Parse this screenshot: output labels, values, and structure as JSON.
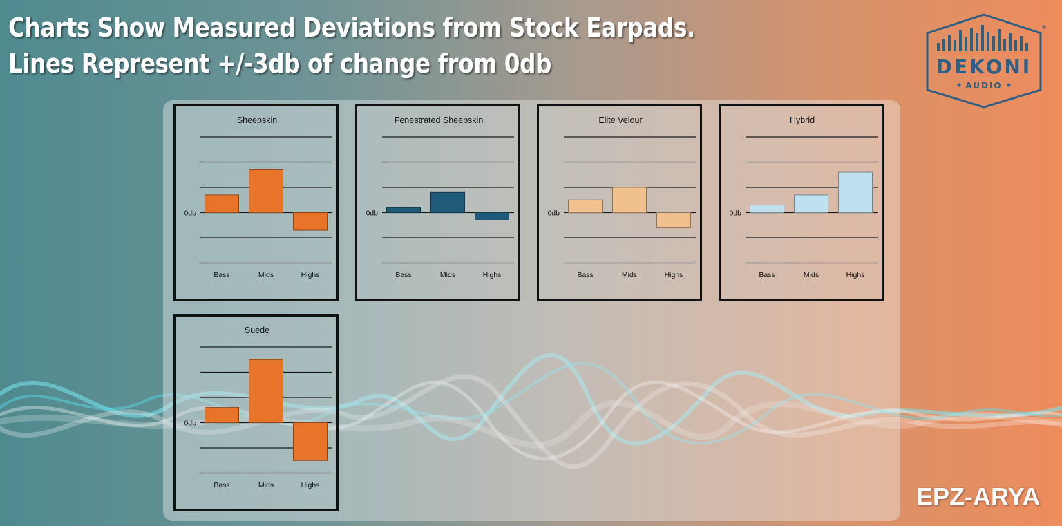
{
  "headline": {
    "line1": "Charts Show Measured Deviations from Stock Earpads.",
    "line2": "Lines Represent +/-3db of change from 0db"
  },
  "brand": {
    "logo_main": "DEKONI",
    "logo_sub": "AUDIO",
    "registered": "®",
    "product": "EPZ-ARYA",
    "logo_color": "#2f5f82"
  },
  "chart_data": [
    {
      "type": "bar",
      "title": "Sheepskin",
      "categories": [
        "Bass",
        "Mids",
        "Highs"
      ],
      "values": [
        0.7,
        1.7,
        -0.7
      ],
      "ylim": [
        -2,
        3
      ],
      "gridlines": [
        -2,
        -1,
        0,
        1,
        2,
        3
      ],
      "zero_label": "0db",
      "color": "#e8742a"
    },
    {
      "type": "bar",
      "title": "Fenestrated Sheepskin",
      "categories": [
        "Bass",
        "Mids",
        "Highs"
      ],
      "values": [
        0.2,
        0.8,
        -0.3
      ],
      "ylim": [
        -2,
        3
      ],
      "gridlines": [
        -2,
        -1,
        0,
        1,
        2,
        3
      ],
      "zero_label": "0db",
      "color": "#1f5a78"
    },
    {
      "type": "bar",
      "title": "Elite Velour",
      "categories": [
        "Bass",
        "Mids",
        "Highs"
      ],
      "values": [
        0.5,
        1.0,
        -0.6
      ],
      "ylim": [
        -2,
        3
      ],
      "gridlines": [
        -2,
        -1,
        0,
        1,
        2,
        3
      ],
      "zero_label": "0db",
      "color": "#f0c08e"
    },
    {
      "type": "bar",
      "title": "Hybrid",
      "categories": [
        "Bass",
        "Mids",
        "Highs"
      ],
      "values": [
        0.3,
        0.7,
        1.6
      ],
      "ylim": [
        -2,
        3
      ],
      "gridlines": [
        -2,
        -1,
        0,
        1,
        2,
        3
      ],
      "zero_label": "0db",
      "color": "#bfe0ee"
    },
    {
      "type": "bar",
      "title": "Suede",
      "categories": [
        "Bass",
        "Mids",
        "Highs"
      ],
      "values": [
        0.6,
        2.5,
        -1.5
      ],
      "ylim": [
        -2,
        3
      ],
      "gridlines": [
        -2,
        -1,
        0,
        1,
        2,
        3
      ],
      "zero_label": "0db",
      "color": "#e8742a"
    }
  ]
}
